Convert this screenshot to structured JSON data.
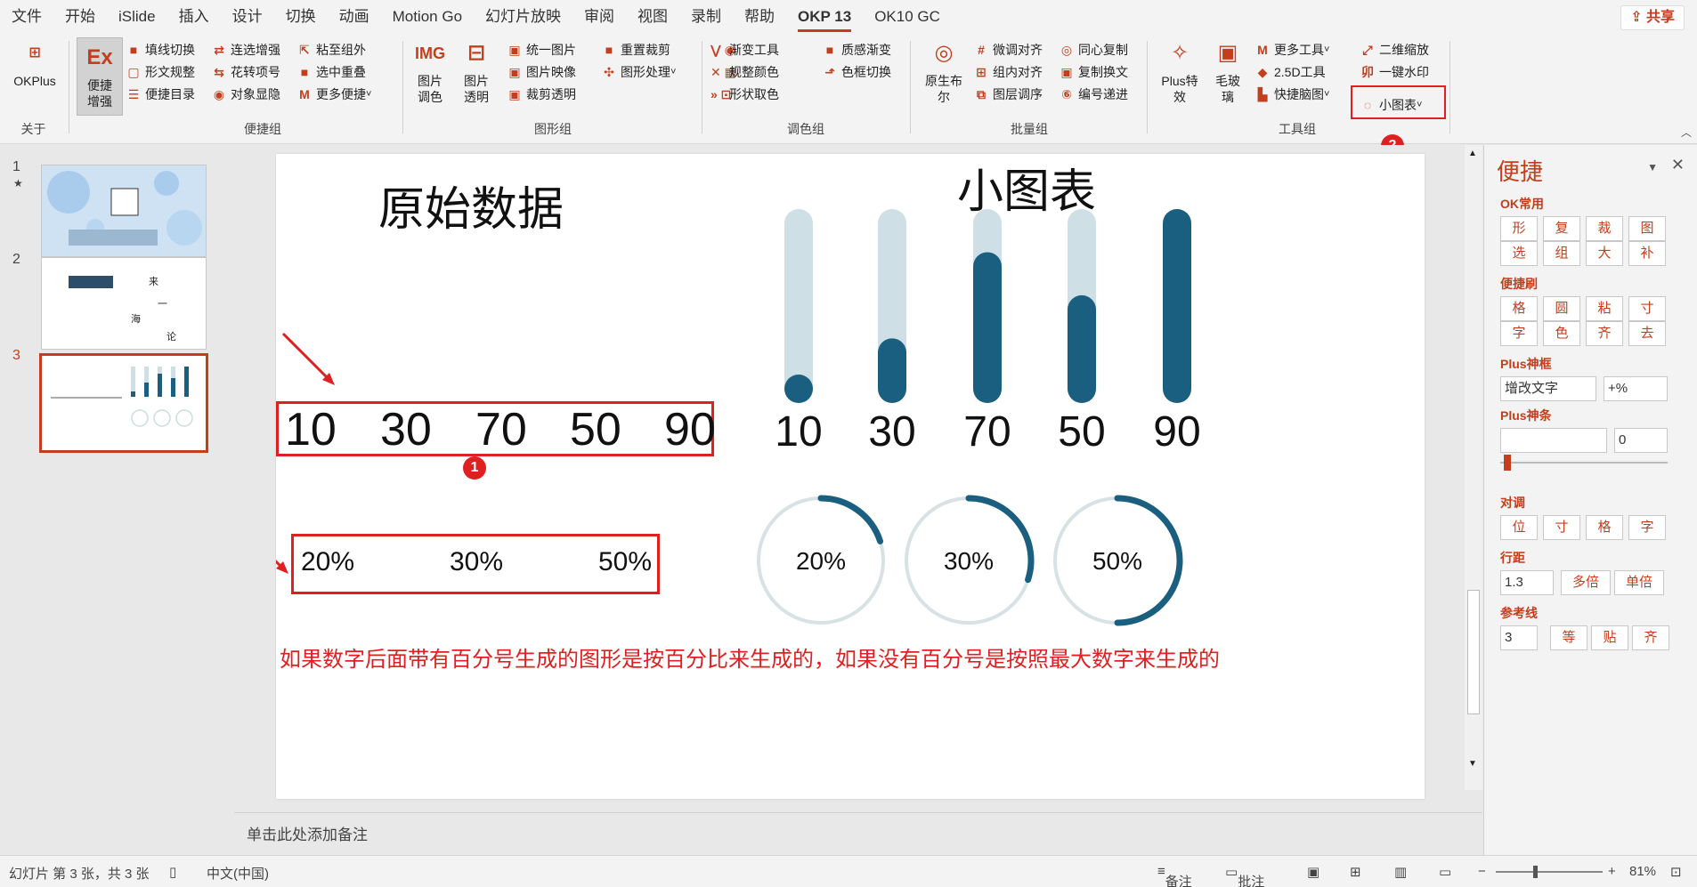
{
  "menu": {
    "items": [
      "文件",
      "开始",
      "iSlide",
      "插入",
      "设计",
      "切换",
      "动画",
      "Motion Go",
      "幻灯片放映",
      "审阅",
      "视图",
      "录制",
      "帮助",
      "OKP 13",
      "OK10 GC"
    ],
    "active": "OKP 13",
    "share": "共享"
  },
  "ribbon": {
    "okplus": "OKPlus",
    "about": "关于",
    "big_convenient": "便捷\n增强",
    "group1": {
      "label": "便捷组",
      "items": [
        "填线切换",
        "连选增强",
        "粘至组外",
        "形文规整",
        "花转项号",
        "选中重叠",
        "便捷目录",
        "对象显隐",
        "更多便捷"
      ]
    },
    "img_big1": "图片\n调色",
    "img_big2": "图片\n透明",
    "group2": {
      "label": "图形组",
      "items": [
        "统一图片",
        "重置裁剪",
        "图片映像",
        "图形处理",
        "裁剪透明"
      ]
    },
    "group3": {
      "label": "调色组",
      "items": [
        "渐变工具",
        "质感渐变",
        "规整颜色",
        "色框切换",
        "形状取色"
      ]
    },
    "orig_big": "原生布\n尔",
    "group4": {
      "label": "批量组",
      "items": [
        "微调对齐",
        "同心复制",
        "组内对齐",
        "复制换文",
        "图层调序",
        "编号递进"
      ]
    },
    "plus_big": "Plus特\n效",
    "glass_big": "毛玻\n璃",
    "group5": {
      "label": "工具组",
      "items": [
        "更多工具",
        "二维缩放",
        "2.5D工具",
        "一键水印",
        "快捷脑图",
        "小图表"
      ]
    }
  },
  "annotations": {
    "badge1": "1",
    "badge2": "2"
  },
  "thumbs": {
    "nums": [
      "1",
      "2",
      "3"
    ],
    "star": "★"
  },
  "slide": {
    "left_title": "原始数据",
    "right_title": "小图表",
    "raw_values": [
      "10",
      "30",
      "70",
      "50",
      "90"
    ],
    "raw_percents": [
      "20%",
      "30%",
      "50%"
    ],
    "bar_labels": [
      "10",
      "30",
      "70",
      "50",
      "90"
    ],
    "ring_labels": [
      "20%",
      "30%",
      "50%"
    ],
    "note": "如果数字后面带有百分号生成的图形是按百分比来生成的，如果没有百分号是按照最大数字来生成的"
  },
  "chart_data": [
    {
      "type": "bar",
      "categories": [
        "10",
        "30",
        "70",
        "50",
        "90"
      ],
      "values": [
        10,
        30,
        70,
        50,
        90
      ],
      "ylim": [
        0,
        90
      ],
      "colors": {
        "fill": "#1a5f80",
        "track": "#cfdfe6"
      }
    },
    {
      "type": "pie",
      "labels": [
        "20%",
        "30%",
        "50%"
      ],
      "values": [
        0.2,
        0.3,
        0.5
      ],
      "colors": {
        "fill": "#1a5f80",
        "track": "#d8e2e4"
      }
    }
  ],
  "notes": {
    "placeholder": "单击此处添加备注"
  },
  "pane": {
    "title": "便捷",
    "sec1": "OK常用",
    "row1": [
      "形",
      "复",
      "裁",
      "图"
    ],
    "row2": [
      "选",
      "组",
      "大",
      "补"
    ],
    "sec2": "便捷刷",
    "row3": [
      "格",
      "圆",
      "粘",
      "寸"
    ],
    "row4": [
      "字",
      "色",
      "齐",
      "去"
    ],
    "sec3": "Plus神框",
    "input1": "增改文字",
    "input2": "+%",
    "sec4": "Plus神条",
    "input3": "",
    "input4": "0",
    "sec5": "对调",
    "row5": [
      "位",
      "寸",
      "格",
      "字"
    ],
    "sec6": "行距",
    "spacing": "1.3",
    "spacing_btns": [
      "多倍",
      "单倍"
    ],
    "sec7": "参考线",
    "guide": "3",
    "guide_btns": [
      "等",
      "贴",
      "齐"
    ]
  },
  "status": {
    "slide_info": "幻灯片 第 3 张，共 3 张",
    "lang": "中文(中国)",
    "notes": "备注",
    "comments": "批注",
    "zoom": "81%"
  }
}
